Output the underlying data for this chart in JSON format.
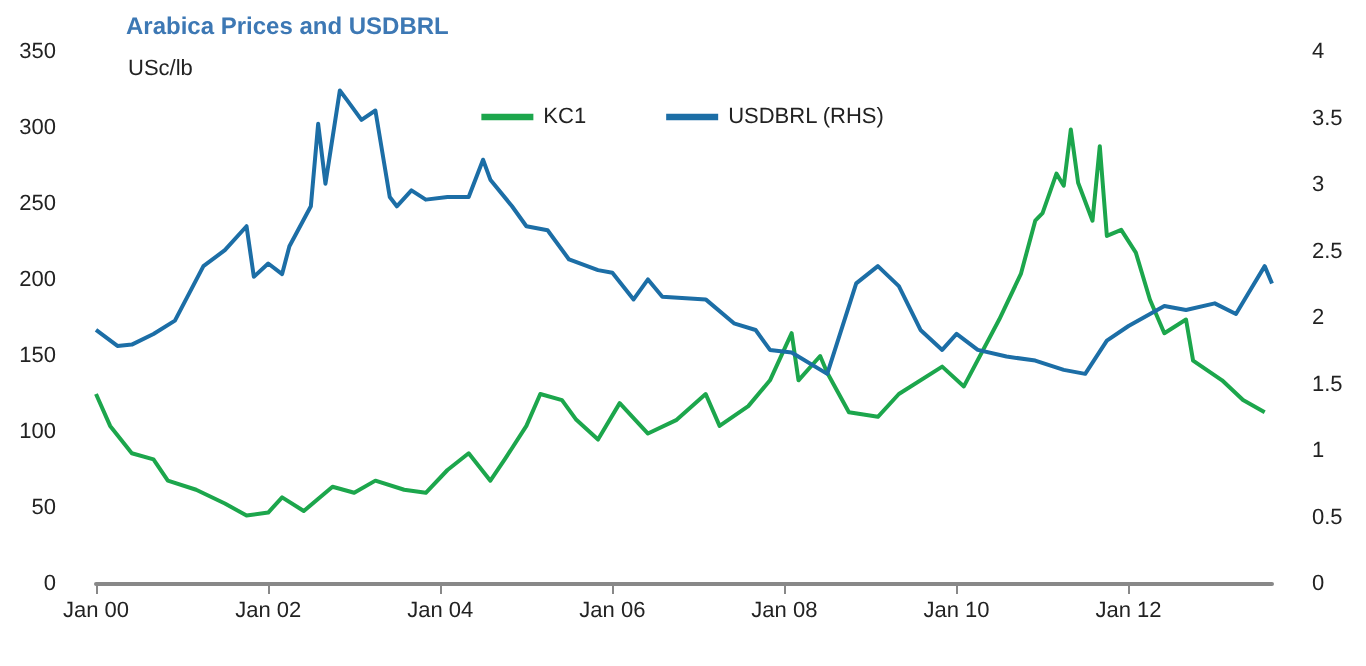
{
  "chart_data": {
    "type": "line",
    "title": "Arabica Prices and USDBRL",
    "ylabel": "USc/lb",
    "series": [
      {
        "name": "KC1",
        "color": "#1ca64c",
        "x": [
          "2000-01",
          "2000-03",
          "2000-06",
          "2000-09",
          "2000-11",
          "2001-03",
          "2001-07",
          "2001-10",
          "2002-01",
          "2002-03",
          "2002-06",
          "2002-10",
          "2003-01",
          "2003-04",
          "2003-08",
          "2003-11",
          "2004-02",
          "2004-05",
          "2004-08",
          "2004-10",
          "2005-01",
          "2005-03",
          "2005-06",
          "2005-08",
          "2005-11",
          "2006-02",
          "2006-06",
          "2006-10",
          "2007-02",
          "2007-04",
          "2007-08",
          "2007-11",
          "2008-02",
          "2008-03",
          "2008-06",
          "2008-07",
          "2008-10",
          "2009-02",
          "2009-05",
          "2009-11",
          "2010-02",
          "2010-07",
          "2010-10",
          "2010-12",
          "2011-01",
          "2011-03",
          "2011-04",
          "2011-05",
          "2011-06",
          "2011-08",
          "2011-09",
          "2011-10",
          "2011-12",
          "2012-02",
          "2012-04",
          "2012-06",
          "2012-09",
          "2012-10",
          "2013-02",
          "2013-05",
          "2013-08"
        ],
        "values": [
          125,
          104,
          86,
          82,
          68,
          62,
          53,
          45,
          47,
          57,
          48,
          64,
          60,
          68,
          62,
          60,
          75,
          86,
          68,
          82,
          104,
          125,
          121,
          108,
          95,
          119,
          99,
          108,
          125,
          104,
          117,
          134,
          165,
          134,
          150,
          139,
          113,
          110,
          125,
          143,
          130,
          174,
          204,
          239,
          244,
          270,
          262,
          299,
          264,
          239,
          288,
          229,
          233,
          218,
          187,
          165,
          174,
          147,
          134,
          121,
          113
        ]
      },
      {
        "name": "USDBRL (RHS)",
        "color": "#1c6ea6",
        "axis": "y2",
        "x": [
          "2000-01",
          "2000-04",
          "2000-06",
          "2000-09",
          "2000-12",
          "2001-04",
          "2001-07",
          "2001-10",
          "2001-11",
          "2002-01",
          "2002-03",
          "2002-04",
          "2002-07",
          "2002-08",
          "2002-09",
          "2002-11",
          "2002-12",
          "2003-02",
          "2003-04",
          "2003-06",
          "2003-07",
          "2003-09",
          "2003-11",
          "2004-02",
          "2004-05",
          "2004-07",
          "2004-08",
          "2004-11",
          "2005-01",
          "2005-04",
          "2005-07",
          "2005-11",
          "2006-01",
          "2006-04",
          "2006-06",
          "2006-08",
          "2007-02",
          "2007-06",
          "2007-09",
          "2007-11",
          "2008-02",
          "2008-07",
          "2008-11",
          "2009-02",
          "2009-05",
          "2009-08",
          "2009-11",
          "2010-01",
          "2010-04",
          "2010-08",
          "2010-12",
          "2011-04",
          "2011-07",
          "2011-10",
          "2012-01",
          "2012-06",
          "2012-09",
          "2013-01",
          "2013-04",
          "2013-06",
          "2013-08",
          "2013-09"
        ],
        "values": [
          1.91,
          1.79,
          1.8,
          1.88,
          1.98,
          2.39,
          2.51,
          2.69,
          2.31,
          2.41,
          2.33,
          2.54,
          2.84,
          3.46,
          3.01,
          3.71,
          3.64,
          3.49,
          3.56,
          2.91,
          2.84,
          2.96,
          2.89,
          2.91,
          2.91,
          3.19,
          3.04,
          2.84,
          2.69,
          2.66,
          2.44,
          2.36,
          2.34,
          2.14,
          2.29,
          2.16,
          2.14,
          1.96,
          1.91,
          1.76,
          1.74,
          1.58,
          2.26,
          2.39,
          2.24,
          1.91,
          1.76,
          1.88,
          1.76,
          1.71,
          1.68,
          1.61,
          1.58,
          1.83,
          1.94,
          2.09,
          2.06,
          2.11,
          2.03,
          2.21,
          2.39,
          2.26
        ]
      }
    ],
    "xlim": [
      "2000-01",
      "2013-09"
    ],
    "xticks": [
      {
        "value": "2000-01",
        "label": "Jan 00"
      },
      {
        "value": "2002-01",
        "label": "Jan 02"
      },
      {
        "value": "2004-01",
        "label": "Jan 04"
      },
      {
        "value": "2006-01",
        "label": "Jan 06"
      },
      {
        "value": "2008-01",
        "label": "Jan 08"
      },
      {
        "value": "2010-01",
        "label": "Jan 10"
      },
      {
        "value": "2012-01",
        "label": "Jan 12"
      }
    ],
    "ylim": [
      0,
      350
    ],
    "yticks": [
      0,
      50,
      100,
      150,
      200,
      250,
      300,
      350
    ],
    "y2lim": [
      0,
      4
    ],
    "y2ticks": [
      0,
      0.5,
      1,
      1.5,
      2,
      2.5,
      3,
      3.5,
      4
    ],
    "legend": "top",
    "grid": false,
    "marker": "none",
    "line_style": "solid"
  }
}
